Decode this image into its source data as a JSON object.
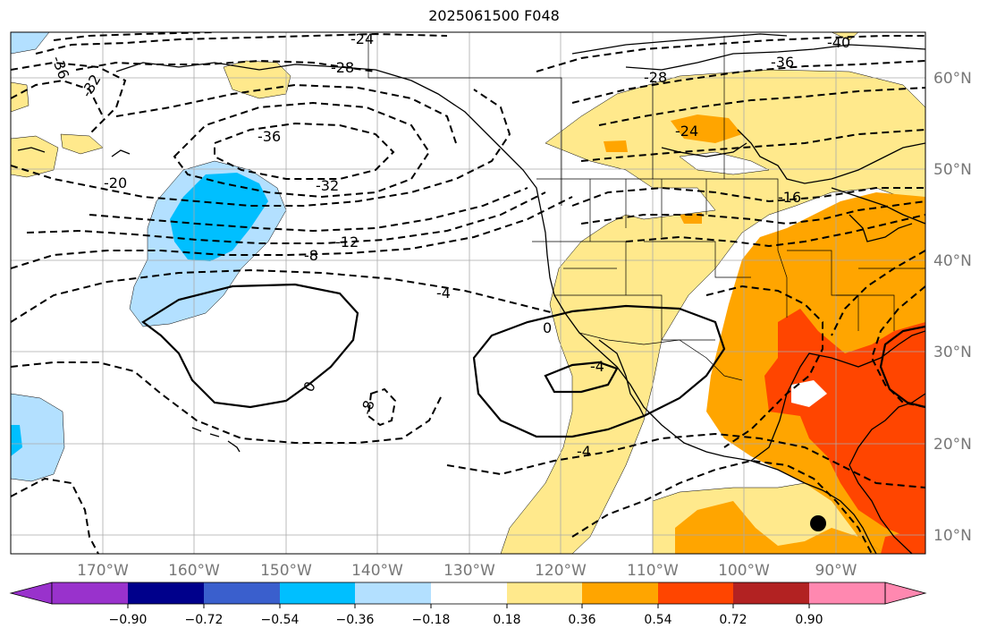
{
  "title": "2025061500 F048",
  "map": {
    "lon_labels": [
      "170°W",
      "160°W",
      "150°W",
      "140°W",
      "130°W",
      "120°W",
      "110°W",
      "100°W",
      "90°W"
    ],
    "lat_labels": [
      "60°N",
      "50°N",
      "40°N",
      "30°N",
      "20°N",
      "10°N"
    ],
    "contour_labels": [
      "-24",
      "-28",
      "-36",
      "-40",
      "-36",
      "-32",
      "-28",
      "-36",
      "-24",
      "-32",
      "-20",
      "-16",
      "-12",
      "-8",
      "-4",
      "0",
      "0",
      "-4",
      "-8",
      "-4"
    ],
    "marker": "black-dot",
    "fill_colors": {
      "light_yellow": "#ffe98c",
      "orange": "#ffa500",
      "red_orange": "#ff4500",
      "light_blue": "#b3e0ff",
      "blue": "#00bfff"
    }
  },
  "colorbar": {
    "ticks": [
      "−0.90",
      "−0.72",
      "−0.54",
      "−0.36",
      "−0.18",
      "0.18",
      "0.36",
      "0.54",
      "0.72",
      "0.90"
    ],
    "colors": [
      "#9932cc",
      "#00008b",
      "#3a5fcd",
      "#00bfff",
      "#b3e0ff",
      "#ffffff",
      "#ffe98c",
      "#ffa500",
      "#ff4500",
      "#b22222",
      "#ff88b0"
    ]
  }
}
